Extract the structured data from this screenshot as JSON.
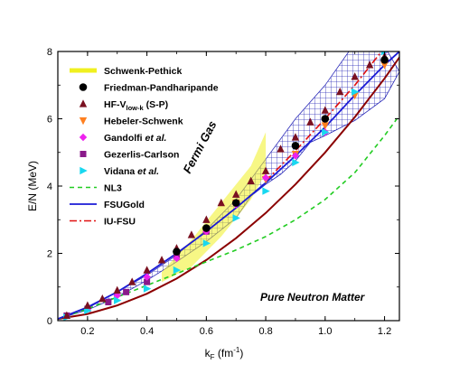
{
  "chart_data": {
    "type": "scatter",
    "xlabel": "k",
    "xlabel_sub": "F",
    "xlabel_unit": " (fm",
    "xlabel_sup": "-1",
    "xlabel_close": ")",
    "ylabel": "E/N (MeV)",
    "xlim": [
      0.1,
      1.25
    ],
    "ylim": [
      0,
      8
    ],
    "xticks": [
      "0.2",
      "0.4",
      "0.6",
      "0.8",
      "1.0",
      "1.2"
    ],
    "yticks": [
      "0",
      "2",
      "4",
      "6",
      "8"
    ],
    "annotations": {
      "fermi": "Fermi Gas",
      "matter": "Pure Neutron Matter"
    },
    "legend_position": "top-left",
    "colors": {
      "fermi": "#8b0000",
      "band": "#2a2ab8",
      "fsugold": "#1a1ad6",
      "iufsu": "#e01010",
      "nl3": "#22cc22",
      "schwenk": "#f0f020",
      "fp": "#000000",
      "hf": "#7a1020",
      "hs": "#ff8020",
      "gandolfi": "#ee22ee",
      "gc": "#8a1a8a",
      "vidana": "#18d8f0"
    },
    "legend": [
      {
        "key": "schwenk",
        "label": "Schwenk-Pethick"
      },
      {
        "key": "fp",
        "label": "Friedman-Pandharipande"
      },
      {
        "key": "hf",
        "label": "HF-V",
        "sub": "low-k",
        "tail": " (S-P)"
      },
      {
        "key": "hs",
        "label": "Hebeler-Schwenk"
      },
      {
        "key": "gandolfi",
        "label": "Gandolfi ",
        "italic": "et al.",
        "tail": ""
      },
      {
        "key": "gc",
        "label": "Gezerlis-Carlson"
      },
      {
        "key": "vidana",
        "label": "Vidana ",
        "italic": "et al.",
        "tail": ""
      },
      {
        "key": "nl3",
        "label": "NL3"
      },
      {
        "key": "fsugold",
        "label": "FSUGold"
      },
      {
        "key": "iufsu",
        "label": "IU-FSU"
      }
    ],
    "series": {
      "fermi_gas": [
        [
          0.1,
          0.05
        ],
        [
          0.2,
          0.2
        ],
        [
          0.3,
          0.45
        ],
        [
          0.4,
          0.8
        ],
        [
          0.5,
          1.25
        ],
        [
          0.6,
          1.8
        ],
        [
          0.7,
          2.45
        ],
        [
          0.8,
          3.2
        ],
        [
          0.9,
          4.05
        ],
        [
          1.0,
          5.0
        ],
        [
          1.1,
          6.05
        ],
        [
          1.2,
          7.2
        ],
        [
          1.26,
          7.95
        ]
      ],
      "band_upper": [
        [
          0.1,
          0.05
        ],
        [
          0.2,
          0.37
        ],
        [
          0.3,
          0.85
        ],
        [
          0.4,
          1.35
        ],
        [
          0.5,
          1.95
        ],
        [
          0.6,
          2.7
        ],
        [
          0.7,
          3.6
        ],
        [
          0.8,
          4.8
        ],
        [
          0.9,
          6.0
        ],
        [
          1.0,
          7.0
        ],
        [
          1.08,
          8.0
        ],
        [
          1.21,
          8.0
        ],
        [
          1.25,
          7.4
        ]
      ],
      "band_lower": [
        [
          1.25,
          7.4
        ],
        [
          1.2,
          6.6
        ],
        [
          1.1,
          5.95
        ],
        [
          1.0,
          5.5
        ],
        [
          0.95,
          5.3
        ],
        [
          0.9,
          4.75
        ],
        [
          0.85,
          4.35
        ],
        [
          0.8,
          4.05
        ],
        [
          0.75,
          3.7
        ],
        [
          0.7,
          3.05
        ],
        [
          0.6,
          2.35
        ],
        [
          0.5,
          1.75
        ],
        [
          0.4,
          1.2
        ],
        [
          0.3,
          0.7
        ],
        [
          0.2,
          0.32
        ],
        [
          0.1,
          0.05
        ]
      ],
      "schwenk_band_upper": [
        [
          0.45,
          1.45
        ],
        [
          0.55,
          2.4
        ],
        [
          0.65,
          3.5
        ],
        [
          0.75,
          4.6
        ],
        [
          0.8,
          5.6
        ]
      ],
      "schwenk_band_lower": [
        [
          0.8,
          4.4
        ],
        [
          0.75,
          3.6
        ],
        [
          0.65,
          2.5
        ],
        [
          0.55,
          1.6
        ],
        [
          0.45,
          1.15
        ]
      ],
      "fsugold": [
        [
          0.1,
          0.05
        ],
        [
          0.2,
          0.4
        ],
        [
          0.3,
          0.85
        ],
        [
          0.4,
          1.4
        ],
        [
          0.5,
          2.0
        ],
        [
          0.6,
          2.65
        ],
        [
          0.7,
          3.35
        ],
        [
          0.8,
          4.1
        ],
        [
          0.9,
          4.9
        ],
        [
          1.0,
          5.75
        ],
        [
          1.1,
          6.7
        ],
        [
          1.2,
          7.6
        ],
        [
          1.25,
          8.0
        ]
      ],
      "iufsu": [
        [
          0.8,
          4.15
        ],
        [
          0.9,
          5.05
        ],
        [
          1.0,
          6.0
        ],
        [
          1.1,
          7.0
        ],
        [
          1.19,
          8.0
        ]
      ],
      "nl3": [
        [
          0.1,
          0.05
        ],
        [
          0.2,
          0.35
        ],
        [
          0.3,
          0.7
        ],
        [
          0.4,
          1.05
        ],
        [
          0.5,
          1.4
        ],
        [
          0.6,
          1.75
        ],
        [
          0.7,
          2.1
        ],
        [
          0.8,
          2.5
        ],
        [
          0.9,
          3.0
        ],
        [
          1.0,
          3.6
        ],
        [
          1.1,
          4.4
        ],
        [
          1.2,
          5.5
        ],
        [
          1.25,
          6.1
        ]
      ],
      "fp": [
        [
          0.5,
          2.05
        ],
        [
          0.6,
          2.75
        ],
        [
          0.7,
          3.5
        ],
        [
          0.9,
          5.2
        ],
        [
          1.0,
          6.0
        ],
        [
          1.2,
          7.75
        ]
      ],
      "hf": [
        [
          0.13,
          0.15
        ],
        [
          0.2,
          0.45
        ],
        [
          0.25,
          0.65
        ],
        [
          0.3,
          0.9
        ],
        [
          0.35,
          1.15
        ],
        [
          0.4,
          1.5
        ],
        [
          0.45,
          1.8
        ],
        [
          0.5,
          2.15
        ],
        [
          0.55,
          2.55
        ],
        [
          0.6,
          3.0
        ],
        [
          0.65,
          3.5
        ],
        [
          0.7,
          3.75
        ],
        [
          0.75,
          4.15
        ],
        [
          0.8,
          4.45
        ],
        [
          0.85,
          5.1
        ],
        [
          0.9,
          5.45
        ],
        [
          0.95,
          5.9
        ],
        [
          1.0,
          6.25
        ],
        [
          1.05,
          6.8
        ],
        [
          1.1,
          7.25
        ],
        [
          1.15,
          7.6
        ],
        [
          1.2,
          7.85
        ]
      ],
      "hs": [
        [
          0.6,
          2.7
        ],
        [
          0.7,
          3.5
        ],
        [
          0.8,
          4.2
        ],
        [
          0.9,
          4.95
        ],
        [
          1.0,
          5.8
        ],
        [
          1.1,
          6.7
        ],
        [
          1.2,
          7.6
        ]
      ],
      "gandolfi": [
        [
          0.2,
          0.35
        ],
        [
          0.3,
          0.75
        ],
        [
          0.4,
          1.3
        ],
        [
          0.5,
          1.85
        ],
        [
          0.6,
          2.65
        ],
        [
          0.7,
          3.45
        ],
        [
          0.8,
          4.25
        ],
        [
          0.9,
          4.9
        ],
        [
          1.0,
          5.6
        ],
        [
          1.2,
          8.0
        ]
      ],
      "gc": [
        [
          0.13,
          0.15
        ],
        [
          0.2,
          0.35
        ],
        [
          0.27,
          0.55
        ],
        [
          0.33,
          0.85
        ],
        [
          0.4,
          1.15
        ],
        [
          0.5,
          1.95
        ],
        [
          0.6,
          2.65
        ]
      ],
      "vidana": [
        [
          0.13,
          0.1
        ],
        [
          0.2,
          0.3
        ],
        [
          0.3,
          0.6
        ],
        [
          0.4,
          0.95
        ],
        [
          0.5,
          1.5
        ],
        [
          0.6,
          2.3
        ],
        [
          0.7,
          3.05
        ],
        [
          0.8,
          3.85
        ],
        [
          0.9,
          4.7
        ],
        [
          1.0,
          5.6
        ],
        [
          1.1,
          6.8
        ],
        [
          1.2,
          8.0
        ]
      ]
    }
  }
}
